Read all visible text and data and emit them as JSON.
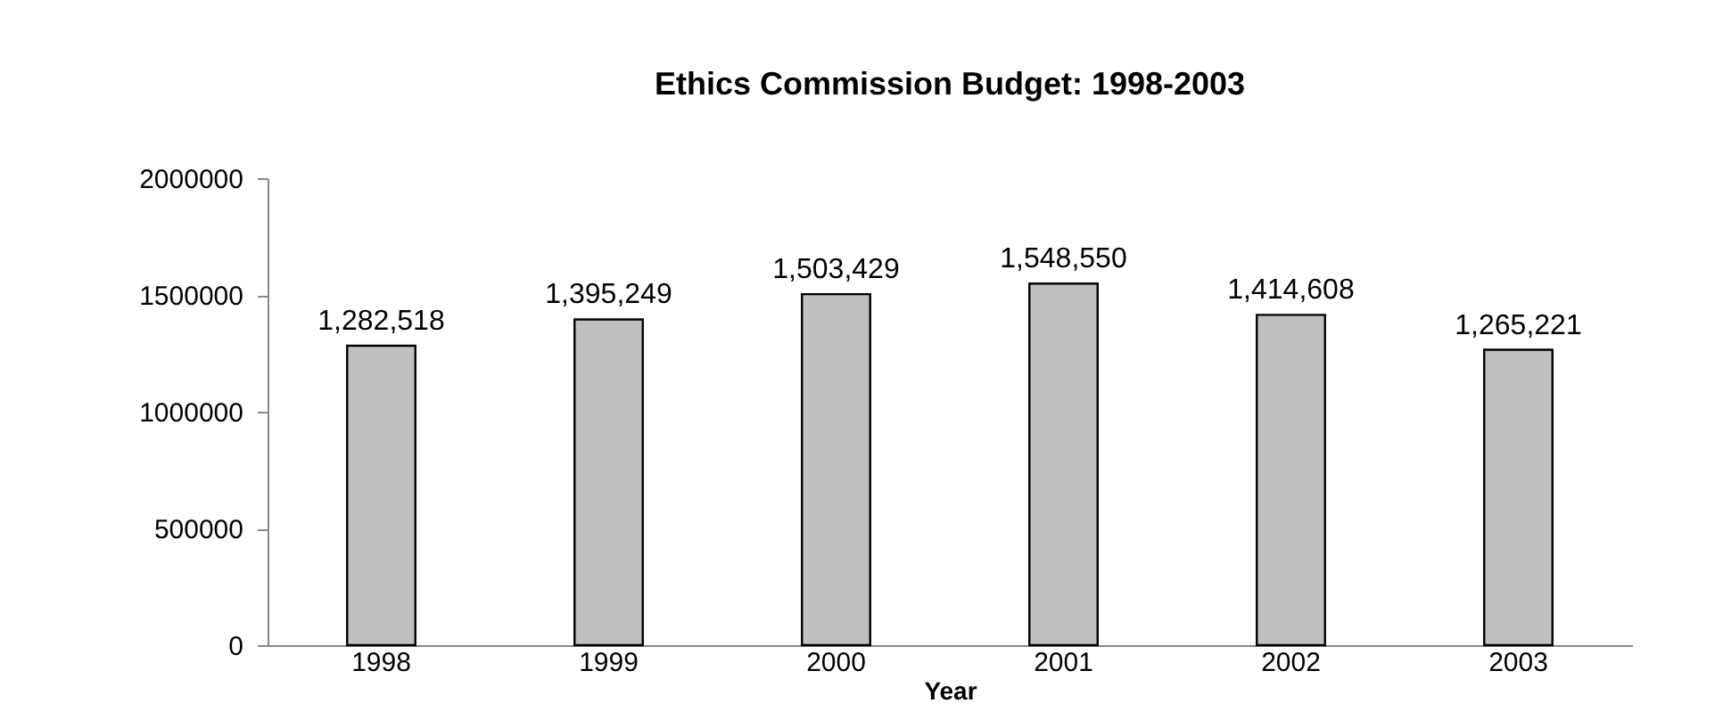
{
  "chart_data": {
    "type": "bar",
    "title": "Ethics Commission Budget: 1998-2003",
    "xlabel": "Year",
    "categories": [
      "1998",
      "1999",
      "2000",
      "2001",
      "2002",
      "2003"
    ],
    "values": [
      1282518,
      1395249,
      1503429,
      1548550,
      1414608,
      1265221
    ],
    "value_labels": [
      "1,282,518",
      "1,395,249",
      "1,503,429",
      "1,548,550",
      "1,414,608",
      "1,265,221"
    ],
    "color": "#c0c0c0",
    "ylim": [
      0,
      2000000
    ],
    "yticks": [
      0,
      500000,
      1000000,
      1500000,
      2000000
    ],
    "grid": false
  }
}
